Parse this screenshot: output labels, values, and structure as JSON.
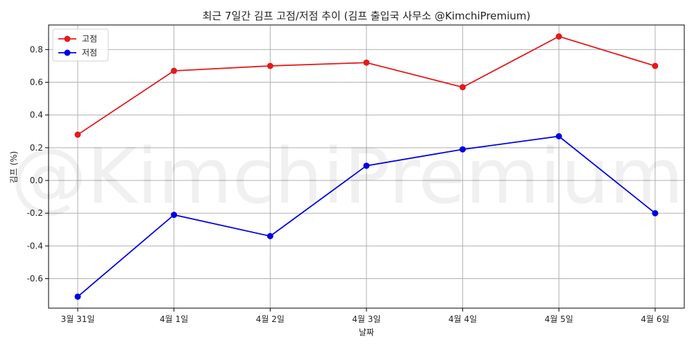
{
  "chart_data": {
    "type": "line",
    "title": "최근 7일간 김프 고점/저점 추이 (김프 출입국 사무소 @KimchiPremium)",
    "xlabel": "날짜",
    "ylabel": "김프 (%)",
    "categories": [
      "3월 31일",
      "4월 1일",
      "4월 2일",
      "4월 3일",
      "4월 4일",
      "4월 5일",
      "4월 6일"
    ],
    "ylim": [
      -0.78,
      0.95
    ],
    "yticks": [
      -0.6,
      -0.4,
      -0.2,
      0.0,
      0.2,
      0.4,
      0.6,
      0.8
    ],
    "ytick_labels": [
      "-0.6",
      "-0.4",
      "-0.2",
      "0.0",
      "0.2",
      "0.4",
      "0.6",
      "0.8"
    ],
    "grid": true,
    "legend_position": "top-left",
    "watermark": "@KimchiPremium",
    "series": [
      {
        "name": "고점",
        "color": "#e41a1c",
        "values": [
          0.28,
          0.67,
          0.7,
          0.72,
          0.57,
          0.88,
          0.7
        ]
      },
      {
        "name": "저점",
        "color": "#0000e6",
        "values": [
          -0.71,
          -0.21,
          -0.34,
          0.09,
          0.19,
          0.27,
          -0.2
        ]
      }
    ]
  }
}
